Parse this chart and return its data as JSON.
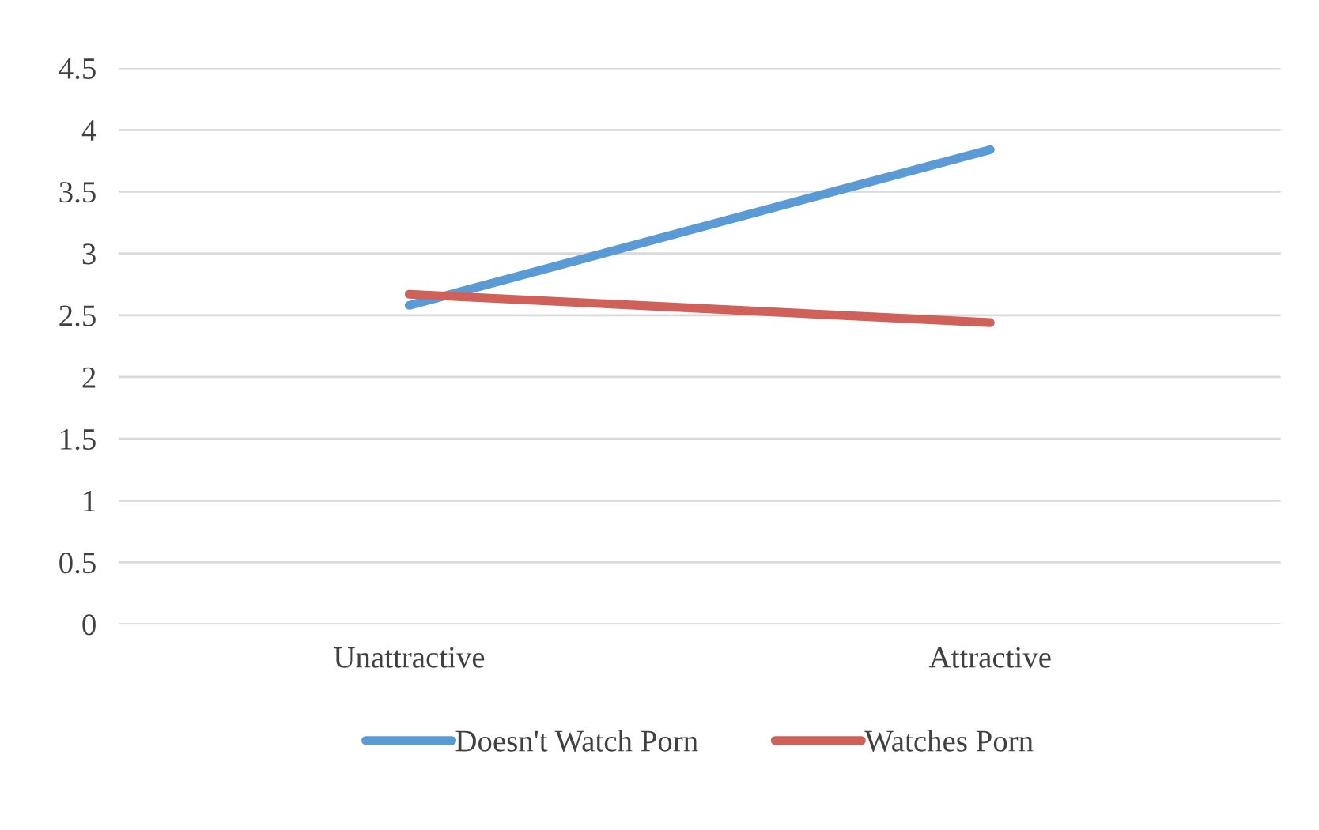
{
  "chart_data": {
    "type": "line",
    "categories": [
      "Unattractive",
      "Attractive"
    ],
    "series": [
      {
        "name": "Doesn't Watch Porn",
        "color": "#5b9bd5",
        "values": [
          2.58,
          3.84
        ]
      },
      {
        "name": "Watches Porn",
        "color": "#d0605a",
        "values": [
          2.67,
          2.44
        ]
      }
    ],
    "ylim": [
      0,
      4.5
    ],
    "yticks": [
      0,
      0.5,
      1,
      1.5,
      2,
      2.5,
      3,
      3.5,
      4,
      4.5
    ],
    "grid": "y",
    "legend": "bottom",
    "marker": "none",
    "line_style": "solid"
  }
}
